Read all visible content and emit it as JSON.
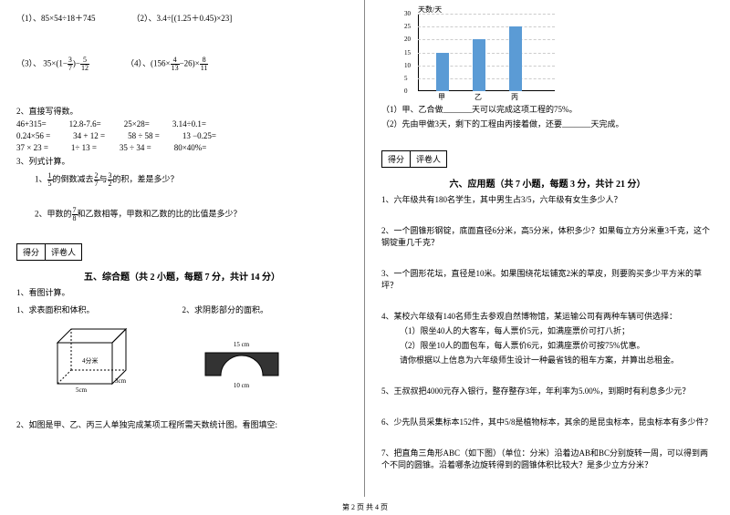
{
  "left": {
    "eq1": "（1）、85×54÷18＋745",
    "eq2": "（2）、3.4÷[(1.25＋0.45)×23]",
    "eq3_a": "（3）、 35×(1−",
    "eq3_f1n": "3",
    "eq3_f1d": "7",
    "eq3_b": ")−",
    "eq3_f2n": "5",
    "eq3_f2d": "12",
    "eq4_a": "（4）、(156×",
    "eq4_f1n": "4",
    "eq4_f1d": "13",
    "eq4_b": "−26)×",
    "eq4_f2n": "8",
    "eq4_f2d": "11",
    "p2": "2、直接写得数。",
    "r1a": "46+315=",
    "r1b": "12.8-7.6=",
    "r1c": "25×28=",
    "r1d": "3.14÷0.1=",
    "r2a": "0.24×56 =",
    "r2b": "34 + 12 =",
    "r2c": "58 ÷ 58 =",
    "r2d": "13 −0.25=",
    "r3a": "37 × 23 =",
    "r3b": "1÷ 13 =",
    "r3c": "35 ÷ 34 =",
    "r3d": "80×40%=",
    "p3": "3、列式计算。",
    "q1a": "1、",
    "q1_f1n": "1",
    "q1_f1d": "5",
    "q1b": "的倒数减去",
    "q1_f2n": "2",
    "q1_f2d": "7",
    "q1c": "与",
    "q1_f3n": "3",
    "q1_f3d": "2",
    "q1d": "的积，差是多少？",
    "q2a": "2、甲数的",
    "q2n": "7",
    "q2d": "8",
    "q2b": "和乙数相等，甲数和乙数的比的比值是多少？",
    "score1": "得分",
    "score2": "评卷人",
    "sec5": "五、综合题（共 2 小题，每题 7 分，共计 14 分）",
    "t1": "1、看图计算。",
    "t1a": "1、求表面积和体积。",
    "t1b": "2、求阴影部分的面积。",
    "box_h": "4分米",
    "box_d": "3cm",
    "box_w": "5cm",
    "arch_top": "15 cm",
    "arch_bot": "10 cm",
    "t2": "2、如图是甲、乙、丙三人单独完成某项工程所需天数统计图。看图填空:"
  },
  "right": {
    "chart_ylabel": "天数/天",
    "chart_ticks": [
      "0",
      "5",
      "10",
      "15",
      "20",
      "25",
      "30"
    ],
    "chart_cats": [
      "甲",
      "乙",
      "丙"
    ],
    "chart_vals": [
      15,
      20,
      25
    ],
    "c1": "（1）甲、乙合做_______天可以完成这项工程的75%。",
    "c2": "（2）先由甲做3天，剩下的工程由丙接着做，还要_______天完成。",
    "score1": "得分",
    "score2": "评卷人",
    "sec6": "六、应用题（共 7 小题，每题 3 分，共计 21 分）",
    "a1": "1、六年级共有180名学生，其中男生占3/5，六年级有女生多少人？",
    "a2": "2、一个圆锥形钢锭，底面直径6分米，高5分米，体积多少？如果每立方分米重3千克，这个钢锭重几千克？",
    "a3": "3、一个圆形花坛，直径是10米。如果围绕花坛铺宽2米的草皮，则要购买多少平方米的草坪？",
    "a4": "4、某校六年级有140名师生去参观自然博物馆，某运输公司有两种车辆可供选择：",
    "a4a": "（1）限坐40人的大客车，每人票价5元，如满座票价可打八折；",
    "a4b": "（2）限坐10人的面包车，每人票价6元，如满座票价可按75%优惠。",
    "a4c": "请你根据以上信息为六年级师生设计一种最省钱的租车方案，并算出总租金。",
    "a5": "5、王叔叔把4000元存入银行，整存整存3年，年利率为5.00%，到期时有利息多少元？",
    "a6": "6、少先队员采集标本152件，其中5/8是植物标本，其余的是昆虫标本，昆虫标本有多少件？",
    "a7": "7、把直角三角形ABC（如下图）（单位：分米）沿着边AB和BC分别旋转一周，可以得到两个不同的圆锥。沿着哪条边旋转得到的圆锥体积比较大？是多少立方分米？"
  },
  "footer": "第 2 页 共 4 页"
}
